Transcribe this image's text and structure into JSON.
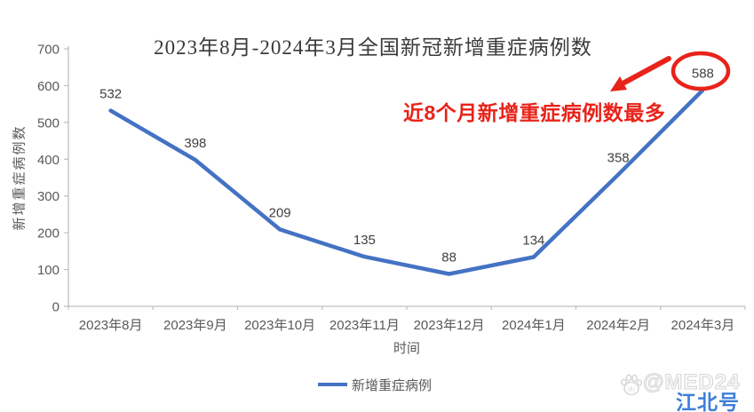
{
  "chart_data": {
    "type": "line",
    "title": "2023年8月-2024年3月全国新冠新增重症病例数",
    "categories": [
      "2023年8月",
      "2023年9月",
      "2023年10月",
      "2023年11月",
      "2023年12月",
      "2024年1月",
      "2024年2月",
      "2024年3月"
    ],
    "series": [
      {
        "name": "新增重症病例",
        "values": [
          532,
          398,
          209,
          135,
          88,
          134,
          358,
          588
        ]
      }
    ],
    "xlabel": "时间",
    "ylabel": "新增重症病例数",
    "ylim": [
      0,
      700
    ],
    "ytick_step": 100,
    "grid": false,
    "legend_position": "bottom",
    "line_color": "#4472C4",
    "axis_color": "#BFBFBF",
    "tick_label_color": "#595959",
    "data_label_color": "#404040"
  },
  "annotation": {
    "text": "近8个月新增重症病例数最多",
    "highlighted_value": "588",
    "color": "#E8231A"
  },
  "watermark": {
    "icon": "baidu-paw-icon",
    "handle": "@MED24",
    "badge": "江北号",
    "badge_color": "#3E7FD9"
  }
}
